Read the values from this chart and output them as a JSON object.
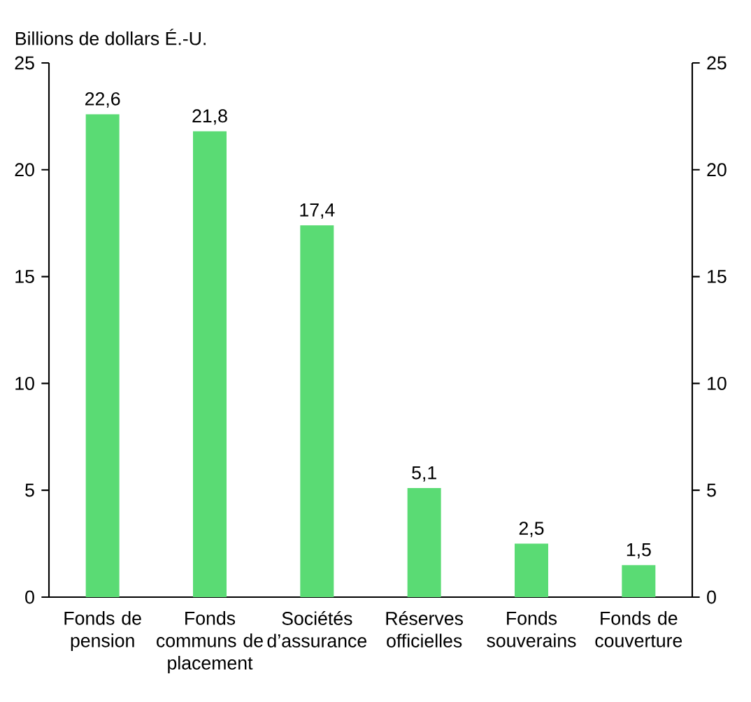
{
  "chart_data": {
    "type": "bar",
    "ylabel": "Billions de dollars É.-U.",
    "categories": [
      "Fonds de pension",
      "Fonds communs de placement",
      "Sociétés d’assurance",
      "Réserves officielles",
      "Fonds souverains",
      "Fonds de couverture"
    ],
    "values": [
      22.6,
      21.8,
      17.4,
      5.1,
      2.5,
      1.5
    ],
    "value_labels": [
      "22,6",
      "21,8",
      "17,4",
      "5,1",
      "2,5",
      "1,5"
    ],
    "color": "#5adb74",
    "ylim": [
      0,
      25
    ],
    "yticks": [
      0,
      5,
      10,
      15,
      20,
      25
    ],
    "y2lim": [
      0,
      25
    ],
    "y2ticks": [
      0,
      5,
      10,
      15,
      20,
      25
    ]
  }
}
